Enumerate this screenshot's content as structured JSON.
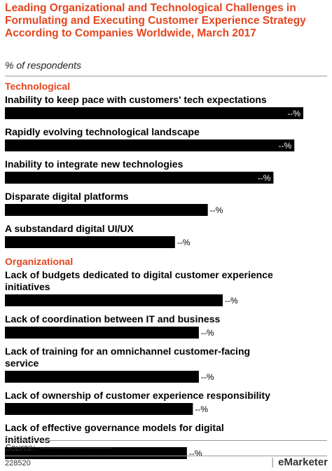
{
  "chart_data": {
    "type": "bar",
    "title": "Leading Organizational and Technological Challenges in Formulating and Executing Customer Experience Strategy According to Companies Worldwide, March 2017",
    "subtitle": "% of respondents",
    "value_label": "--%",
    "groups": [
      {
        "name": "Technological",
        "items": [
          {
            "label": "Inability to keep pace with customers' tech expectations",
            "value": 100
          },
          {
            "label": "Rapidly evolving technological landscape",
            "value": 97
          },
          {
            "label": "Inability to integrate new technologies",
            "value": 90
          },
          {
            "label": "Disparate digital platforms",
            "value": 68
          },
          {
            "label": "A substandard digital UI/UX",
            "value": 57
          }
        ]
      },
      {
        "name": "Organizational",
        "items": [
          {
            "label": "Lack of budgets dedicated to digital customer experience initiatives",
            "value": 73
          },
          {
            "label": "Lack of coordination between IT and business",
            "value": 65
          },
          {
            "label": "Lack of training for an omnichannel customer-facing service",
            "value": 65
          },
          {
            "label": "Lack of ownership of customer experience responsibility",
            "value": 63
          },
          {
            "label": "Lack of effective governance models for digital initiatives",
            "value": 61
          }
        ]
      }
    ],
    "colors": {
      "bar": "#000000",
      "group_label": "#e4451f",
      "title": "#e4451f"
    }
  },
  "footer": {
    "source_label": "Source:",
    "source_value": "-------------------------",
    "chart_id": "228520",
    "logo": "eMarketer",
    "logo_sep": "|"
  }
}
